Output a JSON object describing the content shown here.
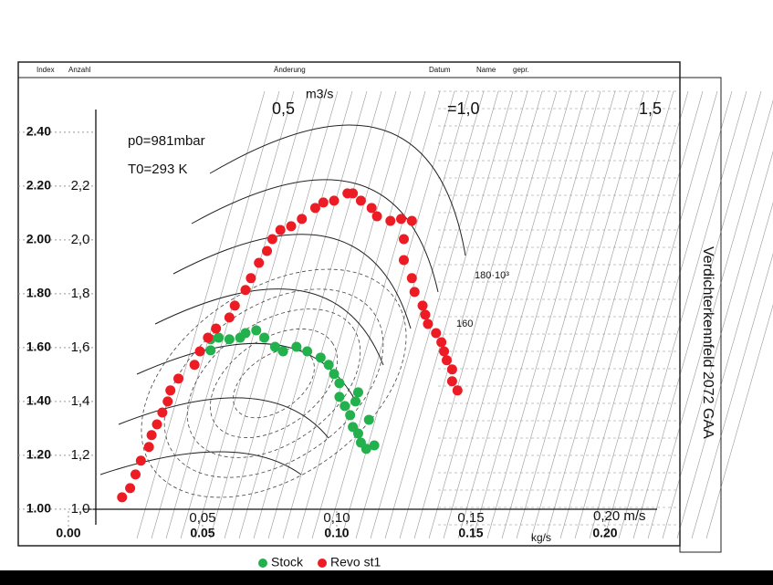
{
  "chart_data": {
    "type": "scatter",
    "xlim": [
      -0.0187,
      0.2279
    ],
    "ylim": [
      0.925,
      2.593
    ],
    "xticks": [
      {
        "value": 0,
        "label": "0.00"
      },
      {
        "value": 0.05,
        "label": "0.05"
      },
      {
        "value": 0.1,
        "label": "0.10"
      },
      {
        "value": 0.15,
        "label": "0.15"
      },
      {
        "value": 0.2,
        "label": "0.20"
      }
    ],
    "yticks": [
      {
        "value": 1,
        "label": "1.00"
      },
      {
        "value": 1.2,
        "label": "1.20"
      },
      {
        "value": 1.4,
        "label": "1.40"
      },
      {
        "value": 1.6,
        "label": "1.60"
      },
      {
        "value": 1.8,
        "label": "1.80"
      },
      {
        "value": 2,
        "label": "2.00"
      },
      {
        "value": 2.2,
        "label": "2.20"
      },
      {
        "value": 2.4,
        "label": "2.40"
      }
    ],
    "grid": true,
    "legend": "bottom",
    "series": [
      {
        "name": "Stock",
        "color": "#22b14c",
        "x": [
          0.053,
          0.053,
          0.056,
          0.06,
          0.064,
          0.066,
          0.07,
          0.073,
          0.077,
          0.08,
          0.085,
          0.089,
          0.094,
          0.097,
          0.099,
          0.101,
          0.101,
          0.103,
          0.105,
          0.106,
          0.108,
          0.109,
          0.111,
          0.114,
          0.112,
          0.107,
          0.108
        ],
        "values": [
          1.631,
          1.59,
          1.637,
          1.631,
          1.637,
          1.654,
          1.664,
          1.637,
          1.603,
          1.586,
          1.603,
          1.586,
          1.563,
          1.536,
          1.502,
          1.468,
          1.417,
          1.383,
          1.349,
          1.305,
          1.281,
          1.247,
          1.224,
          1.237,
          1.332,
          1.4,
          1.434
        ]
      },
      {
        "name": "Revo st1",
        "color": "#ed1c24",
        "x": [
          0.02,
          0.023,
          0.025,
          0.027,
          0.03,
          0.031,
          0.033,
          0.035,
          0.037,
          0.038,
          0.041,
          0.047,
          0.049,
          0.052,
          0.055,
          0.06,
          0.062,
          0.066,
          0.068,
          0.071,
          0.074,
          0.076,
          0.079,
          0.083,
          0.087,
          0.092,
          0.095,
          0.099,
          0.104,
          0.106,
          0.109,
          0.113,
          0.115,
          0.12,
          0.124,
          0.128,
          0.125,
          0.125,
          0.128,
          0.129,
          0.132,
          0.133,
          0.134,
          0.137,
          0.139,
          0.14,
          0.141,
          0.143,
          0.143,
          0.145
        ],
        "values": [
          1.044,
          1.078,
          1.129,
          1.18,
          1.231,
          1.275,
          1.315,
          1.359,
          1.4,
          1.441,
          1.485,
          1.536,
          1.586,
          1.637,
          1.671,
          1.712,
          1.756,
          1.814,
          1.858,
          1.915,
          1.959,
          2.003,
          2.037,
          2.051,
          2.078,
          2.119,
          2.139,
          2.146,
          2.173,
          2.173,
          2.146,
          2.119,
          2.088,
          2.071,
          2.078,
          2.071,
          2.003,
          1.925,
          1.858,
          1.807,
          1.756,
          1.722,
          1.688,
          1.654,
          1.62,
          1.586,
          1.553,
          1.519,
          1.475,
          1.441
        ]
      }
    ],
    "header": [
      "Index",
      "Anzahl",
      "Änderung",
      "Datum",
      "Name",
      "gepr."
    ],
    "annotations": [
      "0,5",
      "m3/s",
      "=1,0",
      "1,5",
      "p0=981mbar",
      "T0=293 K",
      "Verdichterkennfeld 2072 GAA",
      "kg/s",
      "0,20 m/s",
      "160",
      "180·10³"
    ],
    "scan_y_labels": [
      "1,0",
      "1,2",
      "1,4",
      "1,6",
      "1,8",
      "2,0",
      "2,2"
    ],
    "scan_x_labels": [
      "0,05",
      "0,10",
      "0,15"
    ]
  }
}
